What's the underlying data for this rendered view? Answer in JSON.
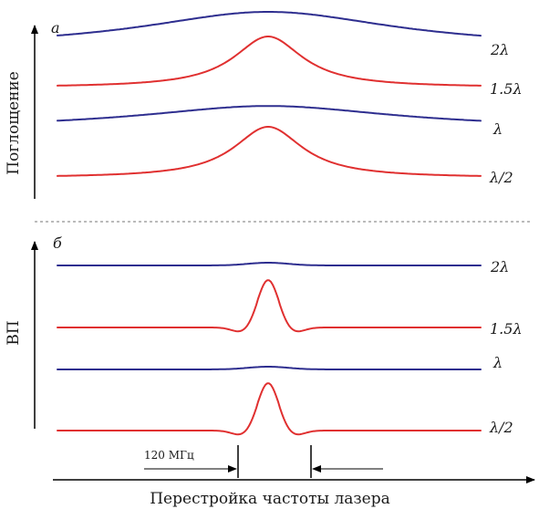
{
  "panel_a": {
    "letter": "а",
    "axis_label": "Поглощение",
    "curves": [
      {
        "label": "2λ",
        "color": "#2e2e8f",
        "kind": "broad"
      },
      {
        "label": "1.5λ",
        "color": "#e03030",
        "kind": "peak"
      },
      {
        "label": "λ",
        "color": "#2e2e8f",
        "kind": "broad"
      },
      {
        "label": "λ/2",
        "color": "#e03030",
        "kind": "peak"
      }
    ]
  },
  "panel_b": {
    "letter": "б",
    "axis_label": "ВП",
    "curves": [
      {
        "label": "2λ",
        "color": "#2e2e8f",
        "kind": "flat"
      },
      {
        "label": "1.5λ",
        "color": "#e03030",
        "kind": "narrow"
      },
      {
        "label": "λ",
        "color": "#2e2e8f",
        "kind": "flat"
      },
      {
        "label": "λ/2",
        "color": "#e03030",
        "kind": "narrow"
      }
    ]
  },
  "width_marker": {
    "label": "120 МГц"
  },
  "x_axis_label": "Перестройка частоты лазера"
}
